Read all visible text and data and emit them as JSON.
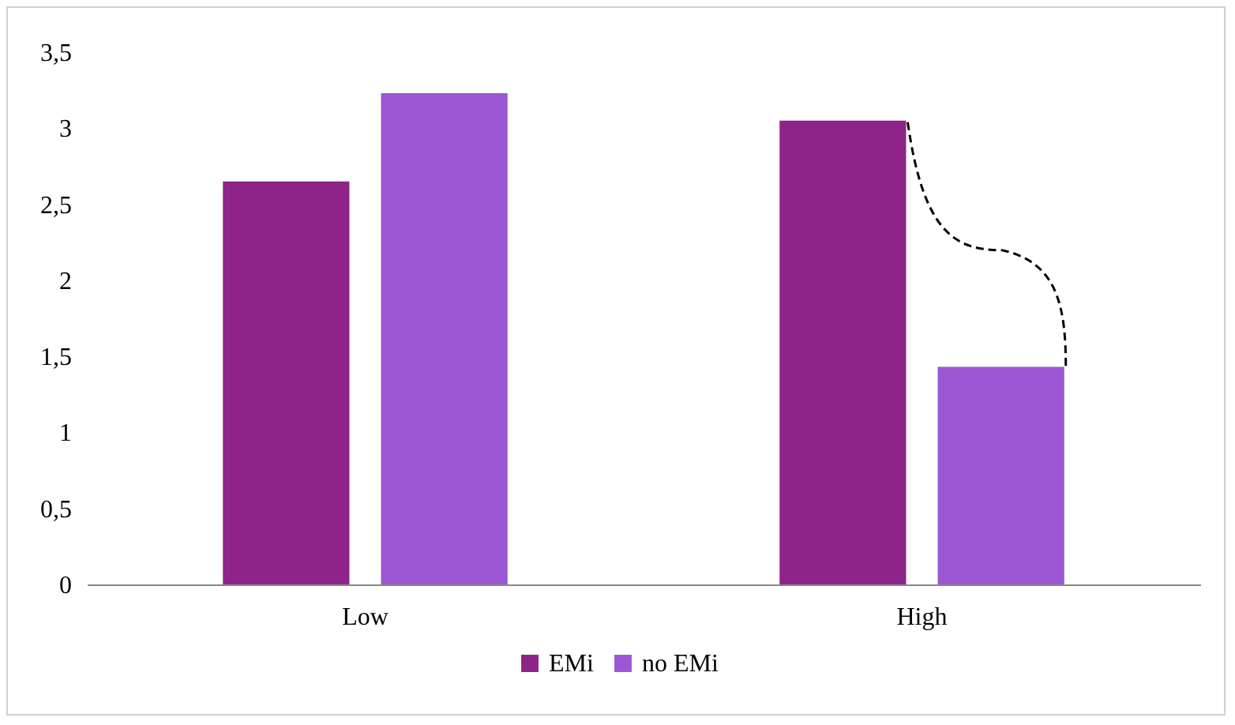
{
  "chart_data": {
    "type": "bar",
    "categories": [
      "Low",
      "High"
    ],
    "series": [
      {
        "name": "EMi",
        "color": "#8e2389",
        "values": [
          2.65,
          3.05
        ]
      },
      {
        "name": "no EMi",
        "color": "#9b57d3",
        "values": [
          3.23,
          1.43
        ]
      }
    ],
    "ylim": [
      0,
      3.5
    ],
    "yticks": [
      0,
      {
        "value": 0.5,
        "label": "0,5"
      },
      1,
      {
        "value": 1.5,
        "label": "1,5"
      },
      2,
      {
        "value": 2.5,
        "label": "2,5"
      },
      3,
      {
        "value": 3.5,
        "label": "3,5"
      }
    ],
    "grid": false,
    "legend": "bottom"
  }
}
